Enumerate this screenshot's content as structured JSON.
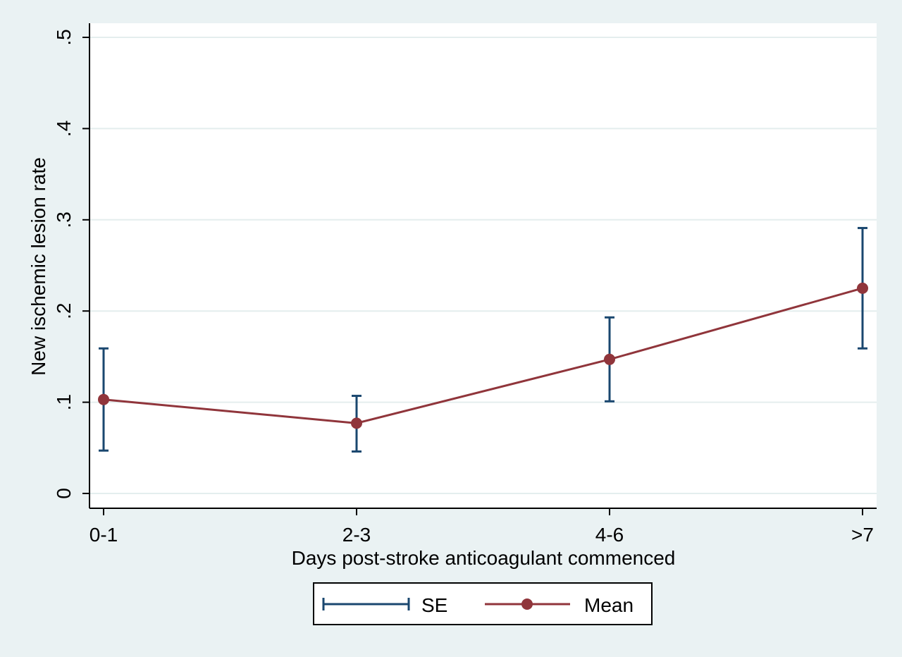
{
  "colors": {
    "background": "#eaf2f3",
    "plot_background": "#ffffff",
    "grid": "#e4eeee",
    "se_color": "#1a476f",
    "mean_color": "#90353b"
  },
  "chart_data": {
    "type": "line",
    "xlabel": "Days post-stroke anticoagulant commenced",
    "ylabel": "New ischemic lesion rate",
    "categories": [
      "0-1",
      "2-3",
      "4-6",
      ">7"
    ],
    "ylim": [
      0,
      0.5
    ],
    "yticks": [
      0,
      0.1,
      0.2,
      0.3,
      0.4,
      0.5
    ],
    "ytick_labels": [
      "0",
      ".1",
      ".2",
      ".3",
      ".4",
      ".5"
    ],
    "grid": true,
    "legend_position": "bottom",
    "series": [
      {
        "name": "Mean",
        "style": "line-with-markers",
        "values": [
          0.103,
          0.077,
          0.147,
          0.225
        ]
      },
      {
        "name": "SE",
        "style": "error-bars",
        "lower": [
          0.047,
          0.046,
          0.101,
          0.159
        ],
        "upper": [
          0.159,
          0.107,
          0.193,
          0.291
        ]
      }
    ],
    "legend": [
      {
        "label": "SE",
        "marker": "error-bar"
      },
      {
        "label": "Mean",
        "marker": "line-dot"
      }
    ]
  }
}
